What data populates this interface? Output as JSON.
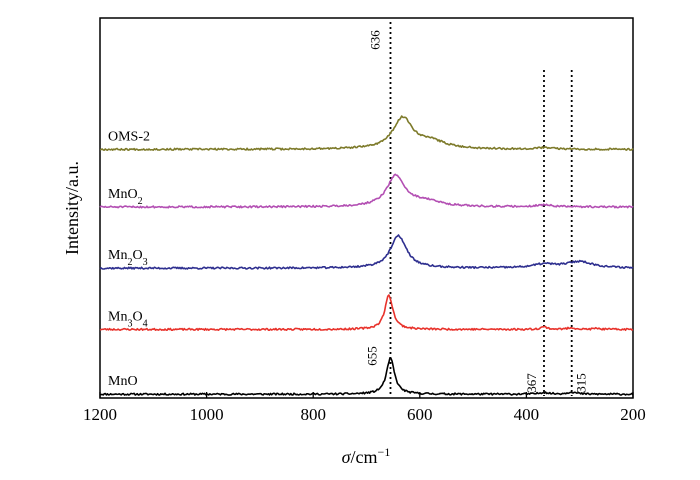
{
  "chart_data": {
    "type": "line",
    "title": "",
    "xlabel": "/cm",
    "xlabel_symbol": "σ",
    "xlabel_sup": "−1",
    "ylabel": "Intensity/a.u.",
    "xlim": [
      1200,
      200
    ],
    "x_reversed": true,
    "x_ticks": [
      "1200",
      "1000",
      "800",
      "600",
      "400",
      "200"
    ],
    "x_tick_values": [
      1200,
      1000,
      800,
      600,
      400,
      200
    ],
    "grid": false,
    "legend": "none",
    "series": [
      {
        "name": "MnO",
        "label_parts": [
          {
            "t": "MnO"
          }
        ],
        "color": "#000000",
        "offset": 0,
        "baseline": 0.05,
        "peaks": [
          [
            655,
            1.0,
            9
          ],
          [
            367,
            0.05,
            10
          ],
          [
            315,
            0.06,
            10
          ]
        ],
        "noise_seed": 11
      },
      {
        "name": "Mn3O4",
        "label_parts": [
          {
            "t": "Mn"
          },
          {
            "t": "3",
            "sub": true
          },
          {
            "t": "O"
          },
          {
            "t": "4",
            "sub": true
          }
        ],
        "color": "#e8322b",
        "offset": 1.8,
        "baseline": 0.05,
        "peaks": [
          [
            658,
            0.95,
            9
          ],
          [
            367,
            0.07,
            8
          ],
          [
            315,
            0.05,
            8
          ],
          [
            268,
            0.03,
            6
          ]
        ],
        "noise_seed": 23
      },
      {
        "name": "Mn2O3",
        "label_parts": [
          {
            "t": "Mn"
          },
          {
            "t": "2",
            "sub": true
          },
          {
            "t": "O"
          },
          {
            "t": "3",
            "sub": true
          }
        ],
        "color": "#2e2f8f",
        "offset": 3.5,
        "baseline": 0.05,
        "peaks": [
          [
            640,
            0.9,
            18
          ],
          [
            367,
            0.1,
            25
          ],
          [
            300,
            0.18,
            30
          ]
        ],
        "noise_seed": 37
      },
      {
        "name": "MnO2",
        "label_parts": [
          {
            "t": "MnO"
          },
          {
            "t": "2",
            "sub": true
          }
        ],
        "color": "#b34fb3",
        "offset": 5.2,
        "baseline": 0.05,
        "peaks": [
          [
            645,
            0.85,
            20
          ],
          [
            590,
            0.15,
            35
          ],
          [
            367,
            0.05,
            20
          ]
        ],
        "noise_seed": 51
      },
      {
        "name": "OMS-2",
        "label_parts": [
          {
            "t": "OMS-2"
          }
        ],
        "color": "#7d7a2a",
        "offset": 6.8,
        "baseline": 0.05,
        "peaks": [
          [
            632,
            0.85,
            22
          ],
          [
            580,
            0.2,
            35
          ],
          [
            367,
            0.04,
            20
          ]
        ],
        "noise_seed": 67
      }
    ],
    "reference_lines": [
      {
        "x": 655,
        "label": "655"
      },
      {
        "x": 367,
        "label": "367"
      },
      {
        "x": 315,
        "label": "315"
      }
    ],
    "annotations": [
      {
        "x": 636,
        "label": "636"
      }
    ]
  }
}
